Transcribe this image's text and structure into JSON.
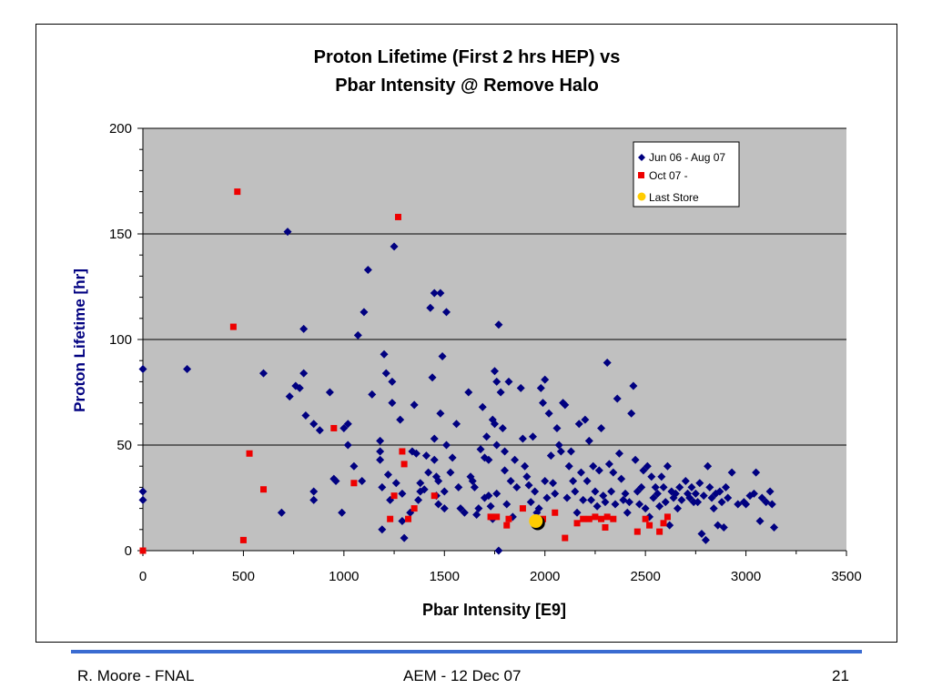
{
  "chart_data": {
    "type": "scatter",
    "title_line1": "Proton Lifetime (First 2 hrs HEP) vs",
    "title_line2": "Pbar Intensity @ Remove Halo",
    "xlabel": "Pbar Intensity  [E9]",
    "ylabel": "Proton Lifetime  [hr]",
    "xlim": [
      0,
      3500
    ],
    "ylim": [
      0,
      200
    ],
    "xticks": [
      "0",
      "500",
      "1000",
      "1500",
      "2000",
      "2500",
      "3000",
      "3500"
    ],
    "yticks": [
      "0",
      "50",
      "100",
      "150",
      "200"
    ],
    "grid": "horizontal major lines",
    "plot_background": "#c0c0c0",
    "legend_position": "top-right",
    "series": [
      {
        "name": "Jun 06 - Aug 07",
        "marker": "diamond",
        "color": "#000080",
        "points": [
          [
            0,
            86
          ],
          [
            0,
            28
          ],
          [
            0,
            24
          ],
          [
            220,
            86
          ],
          [
            600,
            84
          ],
          [
            690,
            18
          ],
          [
            720,
            151
          ],
          [
            730,
            73
          ],
          [
            760,
            78
          ],
          [
            780,
            77
          ],
          [
            800,
            84
          ],
          [
            800,
            105
          ],
          [
            810,
            64
          ],
          [
            850,
            60
          ],
          [
            850,
            28
          ],
          [
            850,
            24
          ],
          [
            880,
            57
          ],
          [
            930,
            75
          ],
          [
            950,
            34
          ],
          [
            960,
            33
          ],
          [
            990,
            18
          ],
          [
            1000,
            58
          ],
          [
            1020,
            60
          ],
          [
            1020,
            50
          ],
          [
            1050,
            40
          ],
          [
            1070,
            102
          ],
          [
            1090,
            33
          ],
          [
            1100,
            113
          ],
          [
            1120,
            133
          ],
          [
            1140,
            74
          ],
          [
            1180,
            52
          ],
          [
            1180,
            47
          ],
          [
            1180,
            43
          ],
          [
            1190,
            30
          ],
          [
            1190,
            10
          ],
          [
            1200,
            93
          ],
          [
            1210,
            84
          ],
          [
            1220,
            36
          ],
          [
            1230,
            24
          ],
          [
            1240,
            70
          ],
          [
            1240,
            80
          ],
          [
            1250,
            144
          ],
          [
            1260,
            32
          ],
          [
            1280,
            62
          ],
          [
            1290,
            27
          ],
          [
            1290,
            14
          ],
          [
            1300,
            6
          ],
          [
            1330,
            18
          ],
          [
            1340,
            47
          ],
          [
            1350,
            69
          ],
          [
            1360,
            46
          ],
          [
            1370,
            24
          ],
          [
            1380,
            28
          ],
          [
            1380,
            32
          ],
          [
            1400,
            29
          ],
          [
            1410,
            45
          ],
          [
            1420,
            37
          ],
          [
            1430,
            115
          ],
          [
            1440,
            82
          ],
          [
            1450,
            122
          ],
          [
            1450,
            53
          ],
          [
            1450,
            43
          ],
          [
            1460,
            26
          ],
          [
            1460,
            35
          ],
          [
            1470,
            22
          ],
          [
            1470,
            33
          ],
          [
            1480,
            122
          ],
          [
            1480,
            65
          ],
          [
            1490,
            92
          ],
          [
            1500,
            28
          ],
          [
            1500,
            20
          ],
          [
            1510,
            113
          ],
          [
            1510,
            50
          ],
          [
            1530,
            37
          ],
          [
            1540,
            44
          ],
          [
            1560,
            60
          ],
          [
            1570,
            30
          ],
          [
            1580,
            20
          ],
          [
            1600,
            18
          ],
          [
            1620,
            75
          ],
          [
            1630,
            35
          ],
          [
            1640,
            33
          ],
          [
            1650,
            30
          ],
          [
            1660,
            17
          ],
          [
            1670,
            20
          ],
          [
            1680,
            48
          ],
          [
            1690,
            68
          ],
          [
            1700,
            44
          ],
          [
            1700,
            25
          ],
          [
            1710,
            54
          ],
          [
            1720,
            43
          ],
          [
            1720,
            26
          ],
          [
            1730,
            21
          ],
          [
            1740,
            62
          ],
          [
            1740,
            15
          ],
          [
            1750,
            85
          ],
          [
            1750,
            60
          ],
          [
            1760,
            80
          ],
          [
            1760,
            50
          ],
          [
            1760,
            27
          ],
          [
            1770,
            107
          ],
          [
            1770,
            0
          ],
          [
            1780,
            75
          ],
          [
            1790,
            58
          ],
          [
            1800,
            47
          ],
          [
            1800,
            38
          ],
          [
            1810,
            22
          ],
          [
            1820,
            80
          ],
          [
            1830,
            33
          ],
          [
            1840,
            16
          ],
          [
            1850,
            43
          ],
          [
            1860,
            30
          ],
          [
            1880,
            77
          ],
          [
            1890,
            53
          ],
          [
            1900,
            40
          ],
          [
            1910,
            35
          ],
          [
            1920,
            31
          ],
          [
            1930,
            23
          ],
          [
            1940,
            54
          ],
          [
            1950,
            28
          ],
          [
            1960,
            18
          ],
          [
            1970,
            20
          ],
          [
            1980,
            77
          ],
          [
            1990,
            70
          ],
          [
            2000,
            81
          ],
          [
            2000,
            33
          ],
          [
            2010,
            25
          ],
          [
            2020,
            65
          ],
          [
            2030,
            45
          ],
          [
            2040,
            32
          ],
          [
            2050,
            27
          ],
          [
            2060,
            58
          ],
          [
            2070,
            50
          ],
          [
            2080,
            47
          ],
          [
            2090,
            70
          ],
          [
            2100,
            69
          ],
          [
            2110,
            25
          ],
          [
            2120,
            40
          ],
          [
            2130,
            47
          ],
          [
            2140,
            33
          ],
          [
            2150,
            28
          ],
          [
            2160,
            18
          ],
          [
            2170,
            60
          ],
          [
            2180,
            37
          ],
          [
            2190,
            24
          ],
          [
            2200,
            62
          ],
          [
            2210,
            33
          ],
          [
            2220,
            52
          ],
          [
            2230,
            24
          ],
          [
            2240,
            40
          ],
          [
            2250,
            28
          ],
          [
            2260,
            21
          ],
          [
            2270,
            38
          ],
          [
            2280,
            58
          ],
          [
            2290,
            26
          ],
          [
            2300,
            23
          ],
          [
            2310,
            89
          ],
          [
            2320,
            41
          ],
          [
            2330,
            28
          ],
          [
            2340,
            37
          ],
          [
            2350,
            22
          ],
          [
            2360,
            72
          ],
          [
            2370,
            46
          ],
          [
            2380,
            34
          ],
          [
            2390,
            24
          ],
          [
            2400,
            27
          ],
          [
            2410,
            18
          ],
          [
            2420,
            23
          ],
          [
            2430,
            65
          ],
          [
            2440,
            78
          ],
          [
            2450,
            43
          ],
          [
            2460,
            28
          ],
          [
            2470,
            22
          ],
          [
            2480,
            30
          ],
          [
            2490,
            38
          ],
          [
            2500,
            20
          ],
          [
            2510,
            40
          ],
          [
            2520,
            16
          ],
          [
            2530,
            35
          ],
          [
            2540,
            25
          ],
          [
            2550,
            30
          ],
          [
            2560,
            27
          ],
          [
            2570,
            21
          ],
          [
            2580,
            35
          ],
          [
            2590,
            30
          ],
          [
            2600,
            23
          ],
          [
            2610,
            40
          ],
          [
            2620,
            12
          ],
          [
            2630,
            28
          ],
          [
            2640,
            25
          ],
          [
            2650,
            27
          ],
          [
            2660,
            20
          ],
          [
            2670,
            30
          ],
          [
            2680,
            24
          ],
          [
            2700,
            33
          ],
          [
            2710,
            27
          ],
          [
            2720,
            25
          ],
          [
            2730,
            30
          ],
          [
            2740,
            23
          ],
          [
            2750,
            27
          ],
          [
            2760,
            23
          ],
          [
            2770,
            32
          ],
          [
            2780,
            8
          ],
          [
            2790,
            26
          ],
          [
            2800,
            5
          ],
          [
            2810,
            40
          ],
          [
            2820,
            30
          ],
          [
            2830,
            25
          ],
          [
            2840,
            20
          ],
          [
            2850,
            27
          ],
          [
            2860,
            12
          ],
          [
            2870,
            28
          ],
          [
            2880,
            23
          ],
          [
            2890,
            11
          ],
          [
            2900,
            30
          ],
          [
            2910,
            25
          ],
          [
            2930,
            37
          ],
          [
            2960,
            22
          ],
          [
            2990,
            23
          ],
          [
            3000,
            22
          ],
          [
            3020,
            26
          ],
          [
            3040,
            27
          ],
          [
            3050,
            37
          ],
          [
            3070,
            14
          ],
          [
            3080,
            25
          ],
          [
            3100,
            23
          ],
          [
            3120,
            28
          ],
          [
            3130,
            22
          ],
          [
            3140,
            11
          ]
        ]
      },
      {
        "name": "Oct 07 -",
        "marker": "square",
        "color": "#ee0000",
        "points": [
          [
            0,
            0
          ],
          [
            450,
            106
          ],
          [
            470,
            170
          ],
          [
            500,
            5
          ],
          [
            530,
            46
          ],
          [
            600,
            29
          ],
          [
            950,
            58
          ],
          [
            1050,
            32
          ],
          [
            1230,
            15
          ],
          [
            1250,
            26
          ],
          [
            1270,
            158
          ],
          [
            1290,
            47
          ],
          [
            1300,
            41
          ],
          [
            1320,
            15
          ],
          [
            1350,
            20
          ],
          [
            1450,
            26
          ],
          [
            1730,
            16
          ],
          [
            1760,
            16
          ],
          [
            1810,
            12
          ],
          [
            1820,
            15
          ],
          [
            1890,
            20
          ],
          [
            1990,
            15
          ],
          [
            2050,
            18
          ],
          [
            2100,
            6
          ],
          [
            2160,
            13
          ],
          [
            2190,
            15
          ],
          [
            2220,
            15
          ],
          [
            2250,
            16
          ],
          [
            2280,
            15
          ],
          [
            2300,
            11
          ],
          [
            2310,
            16
          ],
          [
            2340,
            15
          ],
          [
            2460,
            9
          ],
          [
            2500,
            15
          ],
          [
            2520,
            12
          ],
          [
            2570,
            9
          ],
          [
            2590,
            13
          ],
          [
            2610,
            16
          ]
        ]
      },
      {
        "name": "Last Store",
        "marker": "circle",
        "color": "#ffcc00",
        "points": [
          [
            1955,
            14
          ]
        ]
      }
    ]
  },
  "footer": {
    "left": "R. Moore - FNAL",
    "center": "AEM - 12 Dec 07",
    "right": "21"
  }
}
